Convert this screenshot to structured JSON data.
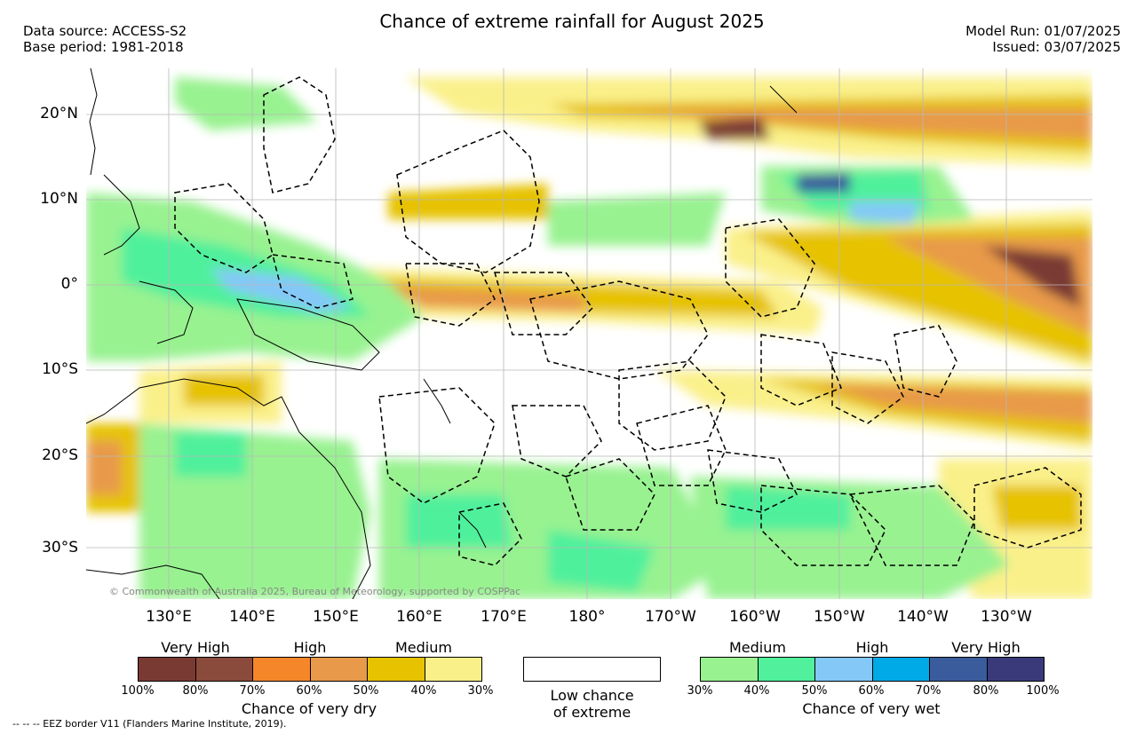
{
  "title": "Chance of extreme rainfall for August 2025",
  "header_left": {
    "source": "Data source: ACCESS-S2",
    "base": "Base period: 1981-2018"
  },
  "header_right": {
    "model_run": "Model Run: 01/07/2025",
    "issued": "Issued: 03/07/2025"
  },
  "lat_labels": [
    "20°N",
    "10°N",
    "0°",
    "10°S",
    "20°S",
    "30°S"
  ],
  "lon_labels": [
    "130°E",
    "140°E",
    "150°E",
    "160°E",
    "170°E",
    "180°",
    "170°W",
    "160°W",
    "150°W",
    "140°W",
    "130°W"
  ],
  "copyright": "© Commonwealth of Australia 2025, Bureau of Meteorology, supported by COSPPac",
  "legend_dry": {
    "categories": [
      "Very High",
      "High",
      "Medium"
    ],
    "colors": [
      "#7a3a34",
      "#8a4a3c",
      "#f5862a",
      "#e89a4a",
      "#e6c200",
      "#faf08a"
    ],
    "ticks": [
      "100%",
      "80%",
      "70%",
      "60%",
      "50%",
      "40%",
      "30%"
    ],
    "caption": "Chance of very dry"
  },
  "legend_low": {
    "line1": "Low chance",
    "line2": "of extreme"
  },
  "legend_wet": {
    "categories": [
      "Medium",
      "High",
      "Very High"
    ],
    "colors": [
      "#98f290",
      "#50f09c",
      "#84c8f8",
      "#00aae6",
      "#3a5c9c",
      "#3a3a7a"
    ],
    "ticks": [
      "30%",
      "40%",
      "50%",
      "60%",
      "70%",
      "80%",
      "100%"
    ],
    "caption": "Chance of very wet"
  },
  "eez_note": "-- -- -- EEZ border V11 (Flanders Marine Institute, 2019)."
}
